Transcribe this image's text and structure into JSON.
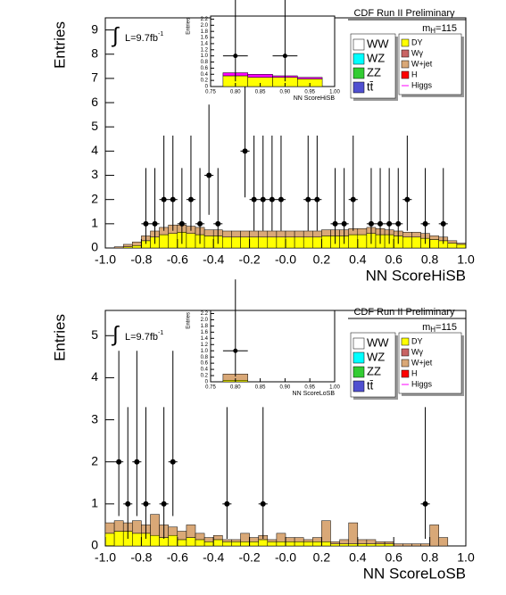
{
  "chart_data": [
    {
      "type": "histogram",
      "title": "CDF Run II Preliminary",
      "xlabel": "NN ScoreHiSB",
      "ylabel": "Entries",
      "mass": {
        "main": "m",
        "sub": "H",
        "rest": "=115"
      },
      "lumi": {
        "symbol": "∫",
        "text": "L=9.7fb",
        "sup": "-1"
      },
      "xlim": [
        -1,
        1
      ],
      "ylim": [
        0,
        9.5
      ],
      "xticks": [
        {
          "value": -1,
          "label": "-1.0"
        },
        -0.8,
        -0.6,
        -0.4,
        -0.2,
        {
          "value": 0,
          "label": "-0.0"
        },
        0.2,
        0.4,
        0.6,
        0.8,
        {
          "value": 1,
          "label": "1.0"
        }
      ],
      "yticks": [
        0,
        1,
        2,
        3,
        4,
        5,
        6,
        7,
        8,
        9
      ],
      "bins": [
        -1,
        -0.95,
        -0.9,
        -0.85,
        -0.8,
        -0.75,
        -0.7,
        -0.65,
        -0.6,
        -0.55,
        -0.5,
        -0.45,
        -0.4,
        -0.35,
        -0.3,
        -0.25,
        -0.2,
        -0.15,
        -0.1,
        -0.05,
        0,
        0.05,
        0.1,
        0.15,
        0.2,
        0.25,
        0.3,
        0.35,
        0.4,
        0.45,
        0.5,
        0.55,
        0.6,
        0.65,
        0.7,
        0.75,
        0.8,
        0.85,
        0.9,
        0.95,
        1
      ],
      "series": [
        {
          "name": "WW",
          "color": "#ffffff"
        },
        {
          "name": "WZ",
          "color": "#00ffff"
        },
        {
          "name": "ZZ",
          "color": "#33cc33"
        },
        {
          "name": "tt̄",
          "color": "#5050d0"
        },
        {
          "name": "DY",
          "color": "#ffff00",
          "values": [
            0,
            0,
            0.05,
            0.1,
            0.3,
            0.45,
            0.55,
            0.6,
            0.65,
            0.6,
            0.55,
            0.5,
            0.5,
            0.45,
            0.45,
            0.45,
            0.45,
            0.45,
            0.45,
            0.45,
            0.45,
            0.45,
            0.45,
            0.45,
            0.5,
            0.5,
            0.5,
            0.55,
            0.55,
            0.6,
            0.55,
            0.55,
            0.5,
            0.45,
            0.45,
            0.4,
            0.35,
            0.3,
            0.2,
            0.15
          ]
        },
        {
          "name": "Wγ",
          "color": "#c86464"
        },
        {
          "name": "W+jet",
          "color": "#d9a877",
          "values": [
            0,
            0.05,
            0.1,
            0.15,
            0.2,
            0.25,
            0.3,
            0.35,
            0.3,
            0.3,
            0.3,
            0.25,
            0.25,
            0.25,
            0.25,
            0.25,
            0.25,
            0.25,
            0.25,
            0.25,
            0.25,
            0.25,
            0.25,
            0.25,
            0.25,
            0.25,
            0.25,
            0.25,
            0.25,
            0.25,
            0.25,
            0.2,
            0.2,
            0.2,
            0.2,
            0.2,
            0.15,
            0.15,
            0.1,
            0.05
          ]
        },
        {
          "name": "H",
          "color": "#ff0000"
        },
        {
          "name": "Higgs",
          "color": "#ff00ff",
          "style": "line"
        }
      ],
      "data": {
        "xerr": 0.025,
        "x": [
          -0.775,
          -0.725,
          -0.675,
          -0.625,
          -0.575,
          -0.525,
          -0.475,
          -0.425,
          -0.375,
          -0.225,
          -0.175,
          -0.125,
          -0.075,
          -0.025,
          0.125,
          0.175,
          0.275,
          0.325,
          0.375,
          0.475,
          0.525,
          0.575,
          0.625,
          0.675,
          0.775,
          0.875
        ],
        "values": [
          1,
          1,
          2,
          2,
          1,
          2,
          1,
          3,
          1,
          4,
          2,
          2,
          2,
          2,
          2,
          2,
          1,
          1,
          2,
          1,
          1,
          1,
          1,
          2,
          1,
          1
        ],
        "err_low": [
          0.83,
          0.83,
          1.29,
          1.29,
          0.83,
          1.29,
          0.83,
          1.63,
          0.83,
          1.91,
          1.29,
          1.29,
          1.29,
          1.29,
          1.29,
          1.29,
          0.83,
          0.83,
          1.29,
          0.83,
          0.83,
          0.83,
          0.83,
          1.29,
          0.83,
          0.83
        ],
        "err_high": [
          2.3,
          2.3,
          2.64,
          2.64,
          2.3,
          2.64,
          2.3,
          2.92,
          2.3,
          3.16,
          2.64,
          2.64,
          2.64,
          2.64,
          2.64,
          2.64,
          2.3,
          2.3,
          2.64,
          2.3,
          2.3,
          2.3,
          2.3,
          2.64,
          2.3,
          2.3
        ]
      },
      "inset": {
        "xlabel": "NN ScoreHiSB",
        "ylabel": "Entries",
        "xlim": [
          0.75,
          1
        ],
        "ylim": [
          0,
          2.3
        ],
        "xticks": [
          0.75,
          {
            "value": 0.8,
            "label": "0.80"
          },
          0.85,
          {
            "value": 0.9,
            "label": "0.90"
          },
          0.95,
          {
            "value": 1,
            "label": "1.00"
          }
        ],
        "yticks": [
          0,
          0.2,
          0.4,
          0.6,
          0.8,
          {
            "value": 1,
            "label": "1.0"
          },
          1.2,
          1.4,
          1.6,
          1.8,
          {
            "value": 2,
            "label": "2.0"
          },
          2.2
        ],
        "bins": [
          0.775,
          0.825,
          0.875,
          0.925,
          0.975
        ],
        "series": [
          {
            "color": "#ffff00",
            "values": [
              0.35,
              0.3,
              0.3,
              0.25
            ]
          },
          {
            "color": "#ff00ff",
            "values": [
              0.1,
              0.1,
              0.05,
              0.05
            ]
          }
        ],
        "data": {
          "xerr": 0.025,
          "x": [
            0.8,
            0.9
          ],
          "values": [
            1,
            1
          ],
          "err_low": [
            0.83,
            0.83
          ],
          "err_high": [
            2.3,
            2.3
          ]
        }
      }
    },
    {
      "type": "histogram",
      "title": "CDF Run II Preliminary",
      "xlabel": "NN ScoreLoSB",
      "ylabel": "Entries",
      "mass": {
        "main": "m",
        "sub": "H",
        "rest": "=115"
      },
      "lumi": {
        "symbol": "∫",
        "text": "L=9.7fb",
        "sup": "-1"
      },
      "xlim": [
        -1,
        1
      ],
      "ylim": [
        0,
        5.6
      ],
      "xticks": [
        {
          "value": -1,
          "label": "-1.0"
        },
        -0.8,
        -0.6,
        -0.4,
        -0.2,
        {
          "value": 0,
          "label": "-0.0"
        },
        0.2,
        0.4,
        0.6,
        0.8,
        {
          "value": 1,
          "label": "1.0"
        }
      ],
      "yticks": [
        0,
        1,
        2,
        3,
        4,
        5
      ],
      "bins": [
        -1,
        -0.95,
        -0.9,
        -0.85,
        -0.8,
        -0.75,
        -0.7,
        -0.65,
        -0.6,
        -0.55,
        -0.5,
        -0.45,
        -0.4,
        -0.35,
        -0.3,
        -0.25,
        -0.2,
        -0.15,
        -0.1,
        -0.05,
        0,
        0.05,
        0.1,
        0.15,
        0.2,
        0.25,
        0.3,
        0.35,
        0.4,
        0.45,
        0.5,
        0.55,
        0.6,
        0.65,
        0.7,
        0.75,
        0.8,
        0.85,
        0.9,
        0.95,
        1
      ],
      "series": [
        {
          "name": "WW",
          "color": "#ffffff"
        },
        {
          "name": "WZ",
          "color": "#00ffff"
        },
        {
          "name": "ZZ",
          "color": "#33cc33"
        },
        {
          "name": "tt̄",
          "color": "#5050d0"
        },
        {
          "name": "DY",
          "color": "#ffff00",
          "values": [
            0.3,
            0.35,
            0.35,
            0.3,
            0.3,
            0.25,
            0.2,
            0.25,
            0.15,
            0.2,
            0.15,
            0.1,
            0.15,
            0.1,
            0.1,
            0.1,
            0.1,
            0.15,
            0.1,
            0.1,
            0.1,
            0.1,
            0.1,
            0.1,
            0.1,
            0.05,
            0.05,
            0.05,
            0.05,
            0.05,
            0.05,
            0.05,
            0,
            0,
            0,
            0,
            0,
            0,
            0,
            0
          ]
        },
        {
          "name": "Wγ",
          "color": "#c86464"
        },
        {
          "name": "W+jet",
          "color": "#d9a877",
          "values": [
            0.25,
            0.25,
            0.2,
            0.3,
            0.2,
            0.5,
            0.3,
            0.2,
            0.2,
            0.3,
            0.15,
            0.1,
            0.1,
            0.05,
            0.05,
            0.2,
            0.1,
            0.1,
            0.05,
            0.2,
            0.1,
            0.1,
            0.05,
            0.1,
            0.5,
            0.05,
            0.1,
            0.5,
            0.1,
            0.1,
            0.05,
            0.05,
            0.05,
            0.05,
            0.05,
            0.05,
            0.5,
            0.2,
            0,
            0
          ]
        },
        {
          "name": "H",
          "color": "#ff0000"
        },
        {
          "name": "Higgs",
          "color": "#ff00ff",
          "style": "line"
        }
      ],
      "data": {
        "xerr": 0.025,
        "x": [
          -0.925,
          -0.875,
          -0.825,
          -0.775,
          -0.675,
          -0.625,
          -0.325,
          -0.125,
          0.775
        ],
        "values": [
          2,
          1,
          2,
          1,
          1,
          2,
          1,
          1,
          1
        ],
        "err_low": [
          1.29,
          0.83,
          1.29,
          0.83,
          0.83,
          1.29,
          0.83,
          0.83,
          0.83
        ],
        "err_high": [
          2.64,
          2.3,
          2.64,
          2.3,
          2.3,
          2.64,
          2.3,
          2.3,
          2.3
        ]
      },
      "inset": {
        "xlabel": "NN ScoreLoSB",
        "ylabel": "Entries",
        "xlim": [
          0.75,
          1
        ],
        "ylim": [
          0,
          2.3
        ],
        "xticks": [
          0.75,
          {
            "value": 0.8,
            "label": "0.80"
          },
          0.85,
          {
            "value": 0.9,
            "label": "0.90"
          },
          0.95,
          {
            "value": 1,
            "label": "1.00"
          }
        ],
        "yticks": [
          0,
          0.2,
          0.4,
          0.6,
          0.8,
          {
            "value": 1,
            "label": "1.0"
          },
          1.2,
          1.4,
          1.6,
          1.8,
          {
            "value": 2,
            "label": "2.0"
          },
          2.2
        ],
        "bins": [
          0.775,
          0.825
        ],
        "series": [
          {
            "color": "#ffff00",
            "values": [
              0.05
            ]
          },
          {
            "color": "#d9a877",
            "values": [
              0.2
            ]
          }
        ],
        "data": {
          "xerr": 0.025,
          "x": [
            0.8
          ],
          "values": [
            1
          ],
          "err_low": [
            0.83
          ],
          "err_high": [
            2.3
          ]
        }
      }
    }
  ]
}
